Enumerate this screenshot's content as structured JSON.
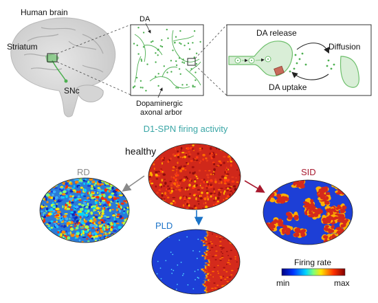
{
  "panel_top": {
    "brain_title": "Human brain",
    "striatum_label": "Striatum",
    "snc_label": "SNc",
    "da_label": "DA",
    "arbor_label_line1": "Dopaminergic",
    "arbor_label_line2": "axonal arbor",
    "release_label": "DA release",
    "diffusion_label": "Diffusion",
    "uptake_label": "DA uptake"
  },
  "panel_bottom": {
    "title": "D1-SPN firing activity",
    "healthy_label": "healthy",
    "rd_label": "RD",
    "sid_label": "SID",
    "pld_label": "PLD",
    "colorbar_title": "Firing rate",
    "colorbar_min": "min",
    "colorbar_max": "max"
  },
  "colors": {
    "title_teal": "#3aa6a6",
    "rd_gray": "#8a8a8a",
    "sid_red": "#a8192e",
    "pld_blue": "#1a73c8",
    "da_green": "#4caf50",
    "map_blue": "#1d3fd6",
    "map_red": "#d42a1c"
  }
}
